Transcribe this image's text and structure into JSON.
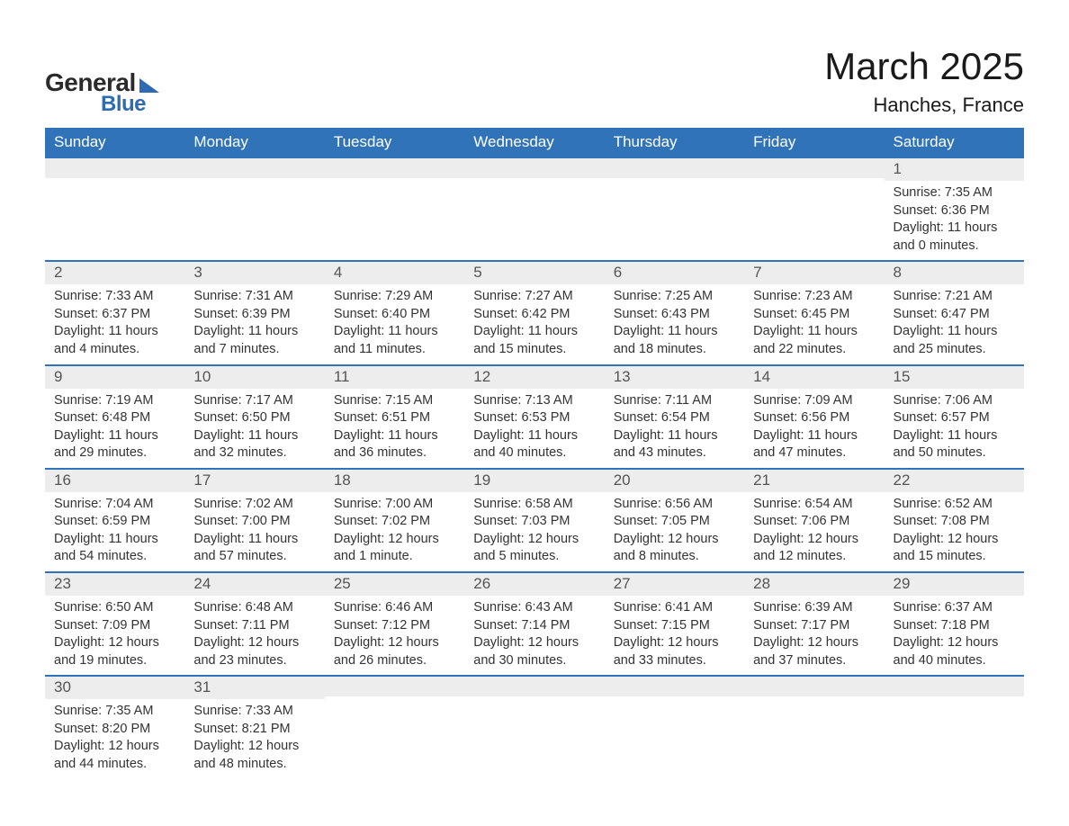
{
  "logo": {
    "word1": "General",
    "word2": "Blue"
  },
  "header": {
    "month_title": "March 2025",
    "location": "Hanches, France"
  },
  "colors": {
    "header_bg": "#3173b8",
    "header_text": "#ffffff",
    "daynum_bg": "#ededed",
    "divider": "#3173b8",
    "body_text": "#333333",
    "logo_accent": "#2d6cb3"
  },
  "weekdays": [
    "Sunday",
    "Monday",
    "Tuesday",
    "Wednesday",
    "Thursday",
    "Friday",
    "Saturday"
  ],
  "weeks": [
    [
      {
        "n": "",
        "sr": "",
        "ss": "",
        "dl": ""
      },
      {
        "n": "",
        "sr": "",
        "ss": "",
        "dl": ""
      },
      {
        "n": "",
        "sr": "",
        "ss": "",
        "dl": ""
      },
      {
        "n": "",
        "sr": "",
        "ss": "",
        "dl": ""
      },
      {
        "n": "",
        "sr": "",
        "ss": "",
        "dl": ""
      },
      {
        "n": "",
        "sr": "",
        "ss": "",
        "dl": ""
      },
      {
        "n": "1",
        "sr": "Sunrise: 7:35 AM",
        "ss": "Sunset: 6:36 PM",
        "dl": "Daylight: 11 hours and 0 minutes."
      }
    ],
    [
      {
        "n": "2",
        "sr": "Sunrise: 7:33 AM",
        "ss": "Sunset: 6:37 PM",
        "dl": "Daylight: 11 hours and 4 minutes."
      },
      {
        "n": "3",
        "sr": "Sunrise: 7:31 AM",
        "ss": "Sunset: 6:39 PM",
        "dl": "Daylight: 11 hours and 7 minutes."
      },
      {
        "n": "4",
        "sr": "Sunrise: 7:29 AM",
        "ss": "Sunset: 6:40 PM",
        "dl": "Daylight: 11 hours and 11 minutes."
      },
      {
        "n": "5",
        "sr": "Sunrise: 7:27 AM",
        "ss": "Sunset: 6:42 PM",
        "dl": "Daylight: 11 hours and 15 minutes."
      },
      {
        "n": "6",
        "sr": "Sunrise: 7:25 AM",
        "ss": "Sunset: 6:43 PM",
        "dl": "Daylight: 11 hours and 18 minutes."
      },
      {
        "n": "7",
        "sr": "Sunrise: 7:23 AM",
        "ss": "Sunset: 6:45 PM",
        "dl": "Daylight: 11 hours and 22 minutes."
      },
      {
        "n": "8",
        "sr": "Sunrise: 7:21 AM",
        "ss": "Sunset: 6:47 PM",
        "dl": "Daylight: 11 hours and 25 minutes."
      }
    ],
    [
      {
        "n": "9",
        "sr": "Sunrise: 7:19 AM",
        "ss": "Sunset: 6:48 PM",
        "dl": "Daylight: 11 hours and 29 minutes."
      },
      {
        "n": "10",
        "sr": "Sunrise: 7:17 AM",
        "ss": "Sunset: 6:50 PM",
        "dl": "Daylight: 11 hours and 32 minutes."
      },
      {
        "n": "11",
        "sr": "Sunrise: 7:15 AM",
        "ss": "Sunset: 6:51 PM",
        "dl": "Daylight: 11 hours and 36 minutes."
      },
      {
        "n": "12",
        "sr": "Sunrise: 7:13 AM",
        "ss": "Sunset: 6:53 PM",
        "dl": "Daylight: 11 hours and 40 minutes."
      },
      {
        "n": "13",
        "sr": "Sunrise: 7:11 AM",
        "ss": "Sunset: 6:54 PM",
        "dl": "Daylight: 11 hours and 43 minutes."
      },
      {
        "n": "14",
        "sr": "Sunrise: 7:09 AM",
        "ss": "Sunset: 6:56 PM",
        "dl": "Daylight: 11 hours and 47 minutes."
      },
      {
        "n": "15",
        "sr": "Sunrise: 7:06 AM",
        "ss": "Sunset: 6:57 PM",
        "dl": "Daylight: 11 hours and 50 minutes."
      }
    ],
    [
      {
        "n": "16",
        "sr": "Sunrise: 7:04 AM",
        "ss": "Sunset: 6:59 PM",
        "dl": "Daylight: 11 hours and 54 minutes."
      },
      {
        "n": "17",
        "sr": "Sunrise: 7:02 AM",
        "ss": "Sunset: 7:00 PM",
        "dl": "Daylight: 11 hours and 57 minutes."
      },
      {
        "n": "18",
        "sr": "Sunrise: 7:00 AM",
        "ss": "Sunset: 7:02 PM",
        "dl": "Daylight: 12 hours and 1 minute."
      },
      {
        "n": "19",
        "sr": "Sunrise: 6:58 AM",
        "ss": "Sunset: 7:03 PM",
        "dl": "Daylight: 12 hours and 5 minutes."
      },
      {
        "n": "20",
        "sr": "Sunrise: 6:56 AM",
        "ss": "Sunset: 7:05 PM",
        "dl": "Daylight: 12 hours and 8 minutes."
      },
      {
        "n": "21",
        "sr": "Sunrise: 6:54 AM",
        "ss": "Sunset: 7:06 PM",
        "dl": "Daylight: 12 hours and 12 minutes."
      },
      {
        "n": "22",
        "sr": "Sunrise: 6:52 AM",
        "ss": "Sunset: 7:08 PM",
        "dl": "Daylight: 12 hours and 15 minutes."
      }
    ],
    [
      {
        "n": "23",
        "sr": "Sunrise: 6:50 AM",
        "ss": "Sunset: 7:09 PM",
        "dl": "Daylight: 12 hours and 19 minutes."
      },
      {
        "n": "24",
        "sr": "Sunrise: 6:48 AM",
        "ss": "Sunset: 7:11 PM",
        "dl": "Daylight: 12 hours and 23 minutes."
      },
      {
        "n": "25",
        "sr": "Sunrise: 6:46 AM",
        "ss": "Sunset: 7:12 PM",
        "dl": "Daylight: 12 hours and 26 minutes."
      },
      {
        "n": "26",
        "sr": "Sunrise: 6:43 AM",
        "ss": "Sunset: 7:14 PM",
        "dl": "Daylight: 12 hours and 30 minutes."
      },
      {
        "n": "27",
        "sr": "Sunrise: 6:41 AM",
        "ss": "Sunset: 7:15 PM",
        "dl": "Daylight: 12 hours and 33 minutes."
      },
      {
        "n": "28",
        "sr": "Sunrise: 6:39 AM",
        "ss": "Sunset: 7:17 PM",
        "dl": "Daylight: 12 hours and 37 minutes."
      },
      {
        "n": "29",
        "sr": "Sunrise: 6:37 AM",
        "ss": "Sunset: 7:18 PM",
        "dl": "Daylight: 12 hours and 40 minutes."
      }
    ],
    [
      {
        "n": "30",
        "sr": "Sunrise: 7:35 AM",
        "ss": "Sunset: 8:20 PM",
        "dl": "Daylight: 12 hours and 44 minutes."
      },
      {
        "n": "31",
        "sr": "Sunrise: 7:33 AM",
        "ss": "Sunset: 8:21 PM",
        "dl": "Daylight: 12 hours and 48 minutes."
      },
      {
        "n": "",
        "sr": "",
        "ss": "",
        "dl": ""
      },
      {
        "n": "",
        "sr": "",
        "ss": "",
        "dl": ""
      },
      {
        "n": "",
        "sr": "",
        "ss": "",
        "dl": ""
      },
      {
        "n": "",
        "sr": "",
        "ss": "",
        "dl": ""
      },
      {
        "n": "",
        "sr": "",
        "ss": "",
        "dl": ""
      }
    ]
  ]
}
